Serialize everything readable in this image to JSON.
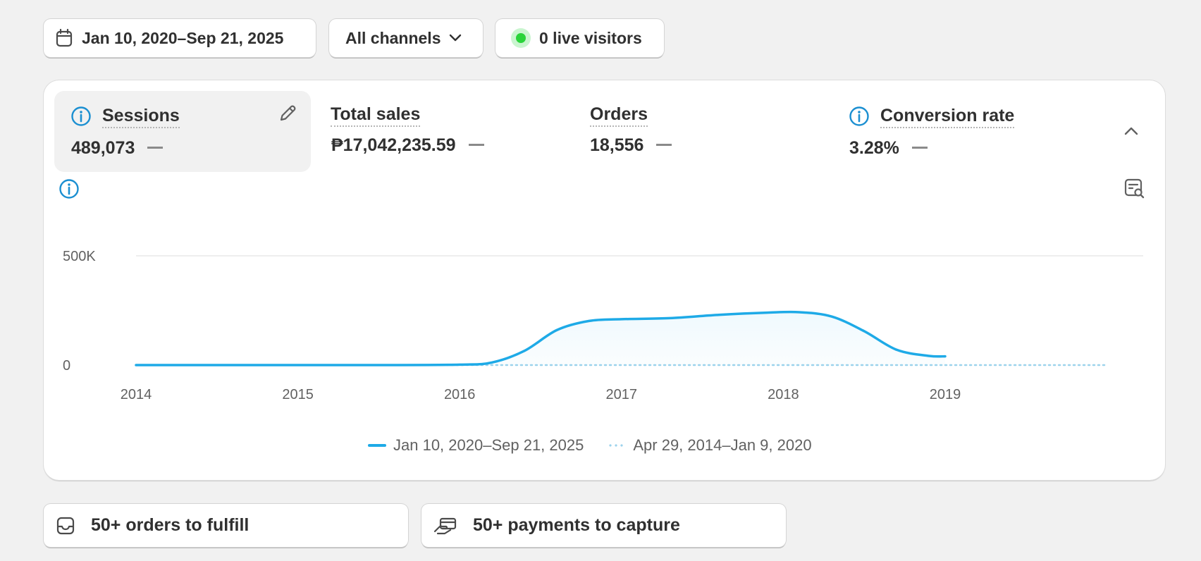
{
  "filters": {
    "date_range": "Jan 10, 2020–Sep 21, 2025",
    "channels": "All channels",
    "live_visitors": "0 live visitors"
  },
  "metrics": [
    {
      "title": "Sessions",
      "value": "489,073",
      "selected": true,
      "has_info": true
    },
    {
      "title": "Total sales",
      "value": "₱17,042,235.59",
      "selected": false,
      "has_info": false
    },
    {
      "title": "Orders",
      "value": "18,556",
      "selected": false,
      "has_info": false
    },
    {
      "title": "Conversion rate",
      "value": "3.28%",
      "selected": false,
      "has_info": true
    }
  ],
  "colors": {
    "accent": "#1eaae7",
    "comparison": "#9dd3ec",
    "live": "#2ad43a",
    "info": "#1b8fd1"
  },
  "chart_data": {
    "type": "line",
    "x_tick_labels": [
      "2014",
      "2015",
      "2016",
      "2017",
      "2018",
      "2019"
    ],
    "y_tick_labels": [
      "0",
      "500K"
    ],
    "ylim": [
      0,
      500000
    ],
    "grid": true,
    "legend_placement": "bottom-center",
    "series": [
      {
        "name": "Jan 10, 2020–Sep 21, 2025",
        "style": "solid",
        "x": [
          2014.0,
          2014.5,
          2015.0,
          2015.5,
          2016.0,
          2016.2,
          2016.4,
          2016.6,
          2016.8,
          2017.0,
          2017.3,
          2017.6,
          2017.9,
          2018.1,
          2018.3,
          2018.5,
          2018.7,
          2018.9,
          2019.0
        ],
        "y": [
          0,
          0,
          0,
          0,
          2000,
          12000,
          65000,
          160000,
          202000,
          210000,
          215000,
          230000,
          240000,
          242000,
          222000,
          155000,
          70000,
          42000,
          40000
        ]
      },
      {
        "name": "Apr 29, 2014–Jan 9, 2020",
        "style": "dotted",
        "x": [
          2014.0,
          2019.0,
          2020.0
        ],
        "y": [
          0,
          0,
          0
        ]
      }
    ]
  },
  "tasks": [
    {
      "label": "50+ orders to fulfill",
      "icon": "inbox-icon"
    },
    {
      "label": "50+ payments to capture",
      "icon": "hand-card-icon"
    }
  ]
}
